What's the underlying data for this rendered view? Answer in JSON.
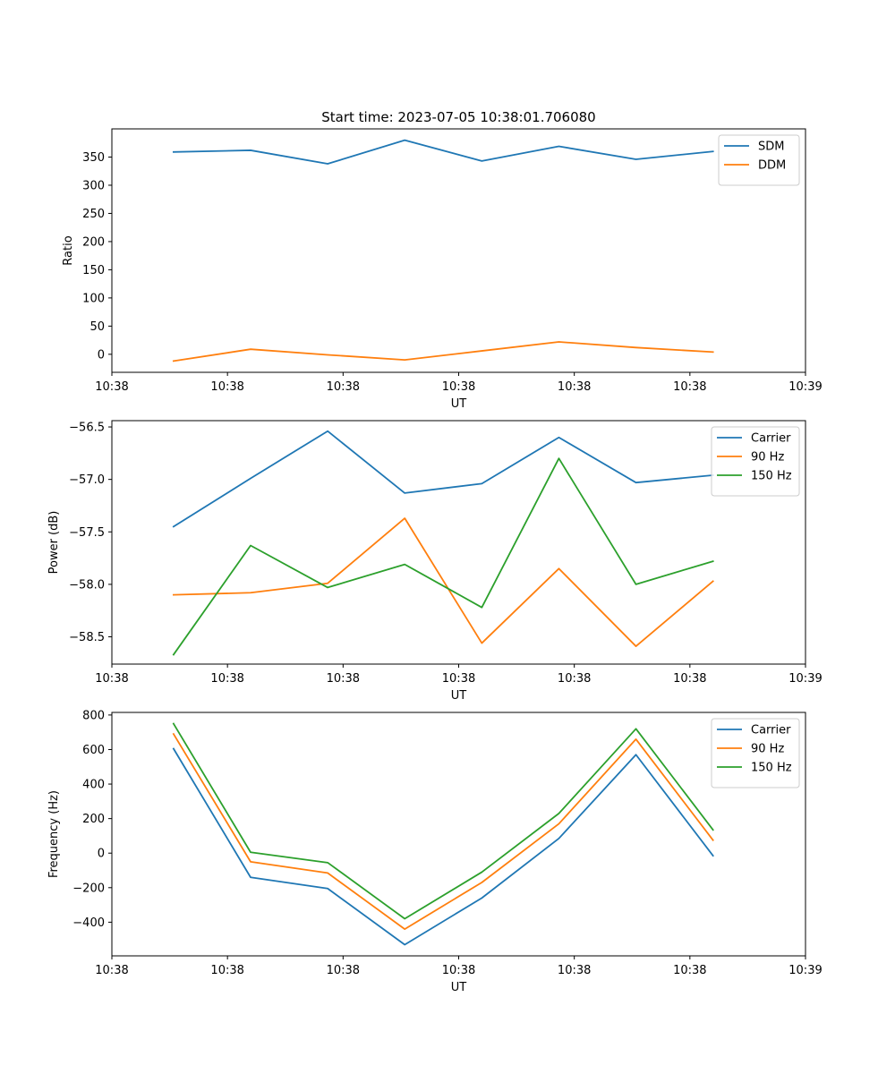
{
  "chart_data": [
    {
      "type": "line",
      "title": "Start time: 2023-07-05 10:38:01.706080",
      "xlabel": "UT",
      "ylabel": "Ratio",
      "x": [
        1,
        2,
        3,
        4,
        5,
        6,
        7,
        8
      ],
      "xlim": [
        0.2,
        9.2
      ],
      "xticks": [
        0.2,
        1.7,
        3.2,
        4.7,
        6.2,
        7.7,
        9.2
      ],
      "xticklabels": [
        "10:38",
        "10:38",
        "10:38",
        "10:38",
        "10:38",
        "10:38",
        "10:39"
      ],
      "ylim": [
        -32,
        400
      ],
      "yticks": [
        0,
        50,
        100,
        150,
        200,
        250,
        300,
        350
      ],
      "yticklabels": [
        "0",
        "50",
        "100",
        "150",
        "200",
        "250",
        "300",
        "350"
      ],
      "legend": "top-right",
      "series": [
        {
          "name": "SDM",
          "color": "#1f77b4",
          "values": [
            359,
            362,
            338,
            380,
            343,
            369,
            346,
            360
          ]
        },
        {
          "name": "DDM",
          "color": "#ff7f0e",
          "values": [
            -12,
            9,
            -1,
            -10,
            6,
            22,
            12,
            4
          ]
        }
      ]
    },
    {
      "type": "line",
      "title": "",
      "xlabel": "UT",
      "ylabel": "Power (dB)",
      "x": [
        1,
        2,
        3,
        4,
        5,
        6,
        7,
        8
      ],
      "xlim": [
        0.2,
        9.2
      ],
      "xticks": [
        0.2,
        1.7,
        3.2,
        4.7,
        6.2,
        7.7,
        9.2
      ],
      "xticklabels": [
        "10:38",
        "10:38",
        "10:38",
        "10:38",
        "10:38",
        "10:38",
        "10:39"
      ],
      "ylim": [
        -58.76,
        -56.44
      ],
      "yticks": [
        -58.5,
        -58.0,
        -57.5,
        -57.0,
        -56.5
      ],
      "yticklabels": [
        "−58.5",
        "−58.0",
        "−57.5",
        "−57.0",
        "−56.5"
      ],
      "legend": "top-right",
      "series": [
        {
          "name": "Carrier",
          "color": "#1f77b4",
          "values": [
            -57.45,
            -56.99,
            -56.54,
            -57.13,
            -57.04,
            -56.6,
            -57.03,
            -56.96
          ]
        },
        {
          "name": "90 Hz",
          "color": "#ff7f0e",
          "values": [
            -58.1,
            -58.08,
            -57.99,
            -57.37,
            -58.56,
            -57.85,
            -58.59,
            -57.97
          ]
        },
        {
          "name": "150 Hz",
          "color": "#2ca02c",
          "values": [
            -58.67,
            -57.63,
            -58.03,
            -57.81,
            -58.22,
            -56.8,
            -58.0,
            -57.78
          ]
        }
      ]
    },
    {
      "type": "line",
      "title": "",
      "xlabel": "UT",
      "ylabel": "Frequency (Hz)",
      "x": [
        1,
        2,
        3,
        4,
        5,
        6,
        7,
        8
      ],
      "xlim": [
        0.2,
        9.2
      ],
      "xticks": [
        0.2,
        1.7,
        3.2,
        4.7,
        6.2,
        7.7,
        9.2
      ],
      "xticklabels": [
        "10:38",
        "10:38",
        "10:38",
        "10:38",
        "10:38",
        "10:38",
        "10:39"
      ],
      "ylim": [
        -595,
        815
      ],
      "yticks": [
        -400,
        -200,
        0,
        200,
        400,
        600,
        800
      ],
      "yticklabels": [
        "−400",
        "−200",
        "0",
        "200",
        "400",
        "600",
        "800"
      ],
      "legend": "top-right",
      "series": [
        {
          "name": "Carrier",
          "color": "#1f77b4",
          "values": [
            605,
            -140,
            -205,
            -530,
            -260,
            85,
            570,
            -15
          ]
        },
        {
          "name": "90 Hz",
          "color": "#ff7f0e",
          "values": [
            690,
            -50,
            -115,
            -440,
            -170,
            170,
            660,
            75
          ]
        },
        {
          "name": "150 Hz",
          "color": "#2ca02c",
          "values": [
            750,
            5,
            -55,
            -380,
            -110,
            230,
            720,
            135
          ]
        }
      ]
    }
  ]
}
